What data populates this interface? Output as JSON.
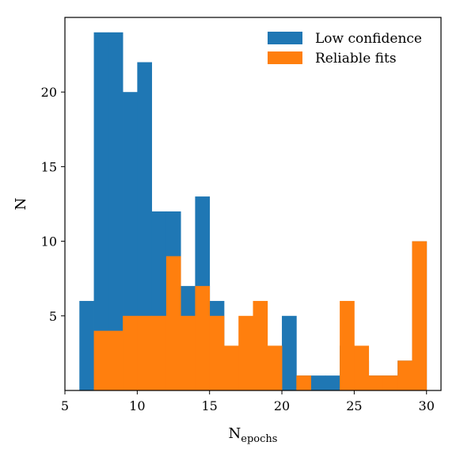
{
  "chart_data": {
    "type": "bar",
    "subtype": "histogram-overlaid",
    "title": "",
    "xlabel": "N",
    "xlabel_subscript": "epochs",
    "ylabel": "N",
    "xlim": [
      5,
      31
    ],
    "ylim": [
      0,
      25
    ],
    "xticks": [
      5,
      10,
      15,
      20,
      25,
      30
    ],
    "yticks": [
      5,
      10,
      15,
      20
    ],
    "bin_width": 1,
    "legend_position": "top-right",
    "series": [
      {
        "name": "Low confidence",
        "color": "#1f77b4",
        "bins": [
          {
            "x": 6,
            "y": 6
          },
          {
            "x": 7,
            "y": 24
          },
          {
            "x": 8,
            "y": 24
          },
          {
            "x": 9,
            "y": 20
          },
          {
            "x": 10,
            "y": 22
          },
          {
            "x": 11,
            "y": 12
          },
          {
            "x": 12,
            "y": 12
          },
          {
            "x": 13,
            "y": 7
          },
          {
            "x": 14,
            "y": 13
          },
          {
            "x": 15,
            "y": 6
          },
          {
            "x": 16,
            "y": 3
          },
          {
            "x": 17,
            "y": 3
          },
          {
            "x": 18,
            "y": 3
          },
          {
            "x": 19,
            "y": 3
          },
          {
            "x": 20,
            "y": 5
          },
          {
            "x": 21,
            "y": 1
          },
          {
            "x": 22,
            "y": 1
          },
          {
            "x": 23,
            "y": 1
          },
          {
            "x": 24,
            "y": 3
          },
          {
            "x": 25,
            "y": 2
          },
          {
            "x": 26,
            "y": 1
          },
          {
            "x": 27,
            "y": 1
          },
          {
            "x": 28,
            "y": 2
          },
          {
            "x": 29,
            "y": 10
          }
        ]
      },
      {
        "name": "Reliable fits",
        "color": "#ff7f0e",
        "bins": [
          {
            "x": 7,
            "y": 4
          },
          {
            "x": 8,
            "y": 4
          },
          {
            "x": 9,
            "y": 5
          },
          {
            "x": 10,
            "y": 5
          },
          {
            "x": 11,
            "y": 5
          },
          {
            "x": 12,
            "y": 9
          },
          {
            "x": 13,
            "y": 5
          },
          {
            "x": 14,
            "y": 7
          },
          {
            "x": 15,
            "y": 5
          },
          {
            "x": 16,
            "y": 3
          },
          {
            "x": 17,
            "y": 5
          },
          {
            "x": 18,
            "y": 6
          },
          {
            "x": 19,
            "y": 3
          },
          {
            "x": 21,
            "y": 1
          },
          {
            "x": 24,
            "y": 6
          },
          {
            "x": 25,
            "y": 3
          },
          {
            "x": 26,
            "y": 1
          },
          {
            "x": 27,
            "y": 1
          },
          {
            "x": 28,
            "y": 2
          },
          {
            "x": 29,
            "y": 10
          }
        ]
      }
    ]
  }
}
